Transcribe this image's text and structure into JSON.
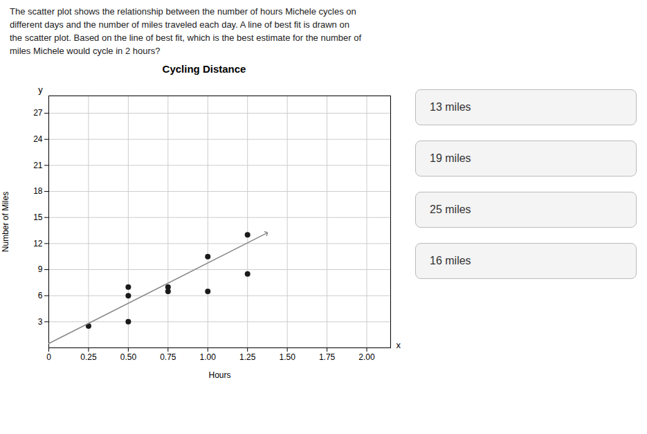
{
  "chart_data": {
    "type": "scatter",
    "title": "Cycling Distance",
    "subtitle": "The scatter plot shows the relationship between the number of hours Michele cycles on\ndifferent days and the number of miles traveled each day. A line of best fit is drawn on\nthe scatter plot. Based on the line of best fit, which is the best estimate for the number of\nmiles Michele would cycle in 2 hours?",
    "xlabel": "Hours",
    "ylabel": "Number of Miles",
    "annotations": [
      "y",
      "x",
      "13 miles",
      "19 miles",
      "25 miles",
      "16 miles"
    ],
    "series": [
      {
        "type": "scatter",
        "color": "#1a1a1a",
        "x": [
          0.25,
          0.5,
          0.5,
          0.5,
          0.75,
          0.75,
          1.0,
          1.0,
          1.25,
          1.25
        ],
        "values": [
          2.5,
          3.0,
          6.0,
          7.0,
          6.5,
          7.0,
          6.5,
          10.5,
          8.5,
          13.0
        ]
      },
      {
        "type": "line",
        "color": "#888888",
        "x": [
          0.0,
          1.37
        ],
        "values": [
          0.5,
          13.2
        ]
      }
    ],
    "xlim": [
      0,
      2.15
    ],
    "ylim": [
      0,
      29
    ],
    "xticks": [
      0,
      0.25,
      {
        "value": 0.5,
        "label": "0.50"
      },
      0.75,
      {
        "value": 1.0,
        "label": "1.00"
      },
      1.25,
      {
        "value": 1.5,
        "label": "1.50"
      },
      1.75,
      {
        "value": 2.0,
        "label": "2.00"
      }
    ],
    "yticks": [
      3,
      6,
      9,
      12,
      15,
      18,
      21,
      24,
      27
    ],
    "grid": true
  }
}
